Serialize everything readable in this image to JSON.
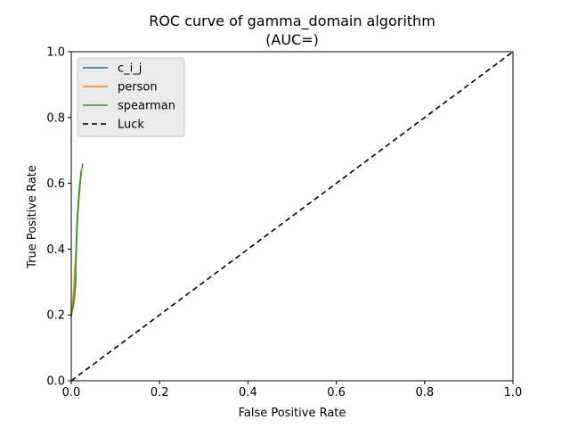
{
  "chart_data": {
    "type": "line",
    "title_line1": "ROC curve of gamma_domain algorithm",
    "title_line2": "(AUC=)",
    "xlabel": "False Positive Rate",
    "ylabel": "True Positive Rate",
    "xlim": [
      0.0,
      1.0
    ],
    "ylim": [
      0.0,
      1.0
    ],
    "xticks": [
      0.0,
      0.2,
      0.4,
      0.6,
      0.8,
      1.0
    ],
    "yticks": [
      0.0,
      0.2,
      0.4,
      0.6,
      0.8,
      1.0
    ],
    "xtick_labels": [
      "0.0",
      "0.2",
      "0.4",
      "0.6",
      "0.8",
      "1.0"
    ],
    "ytick_labels": [
      "0.0",
      "0.2",
      "0.4",
      "0.6",
      "0.8",
      "1.0"
    ],
    "grid": false,
    "legend_position": "upper-left",
    "series": [
      {
        "name": "c_i_j",
        "color": "#1f77b4",
        "dashed": false,
        "x": [
          0.0,
          0.004,
          0.008,
          0.01,
          0.01,
          0.012,
          0.015,
          0.018,
          0.022,
          0.026
        ],
        "y": [
          0.2,
          0.24,
          0.27,
          0.3,
          0.37,
          0.45,
          0.52,
          0.58,
          0.63,
          0.66
        ]
      },
      {
        "name": "person",
        "color": "#ff7f0e",
        "dashed": false,
        "x": [
          0.0,
          0.003,
          0.006,
          0.009,
          0.012,
          0.015,
          0.018,
          0.021,
          0.024
        ],
        "y": [
          0.19,
          0.23,
          0.29,
          0.36,
          0.43,
          0.5,
          0.56,
          0.61,
          0.65
        ]
      },
      {
        "name": "spearman",
        "color": "#2ca02c",
        "dashed": false,
        "x": [
          0.0,
          0.005,
          0.007,
          0.008,
          0.01,
          0.012,
          0.014,
          0.017,
          0.02,
          0.023
        ],
        "y": [
          0.2,
          0.23,
          0.25,
          0.26,
          0.33,
          0.42,
          0.5,
          0.56,
          0.6,
          0.64
        ]
      },
      {
        "name": "Luck",
        "color": "#000000",
        "dashed": true,
        "x": [
          0.0,
          1.0
        ],
        "y": [
          0.0,
          1.0
        ]
      }
    ]
  }
}
